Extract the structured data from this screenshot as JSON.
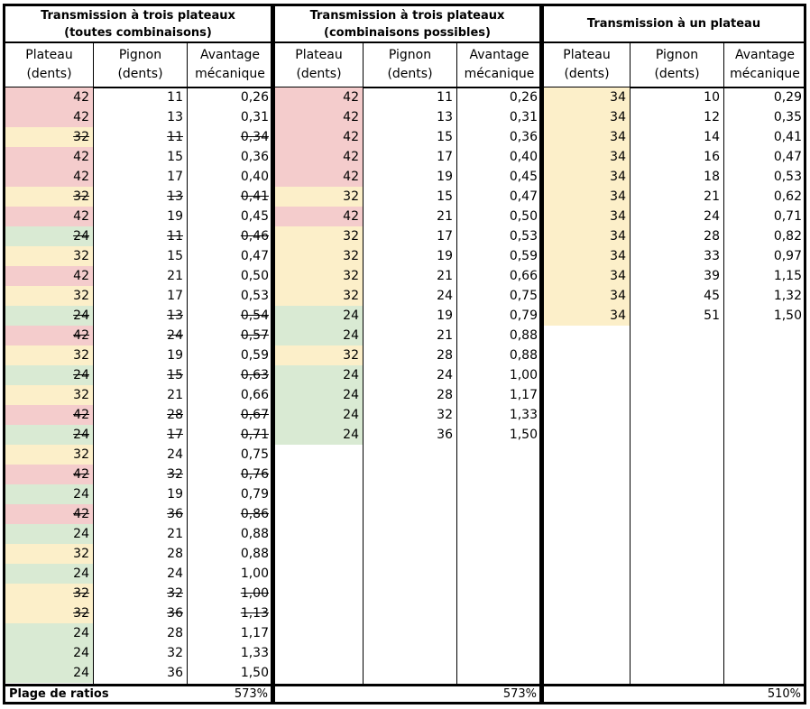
{
  "sections": [
    {
      "title_line1": "Transmission à trois plateaux",
      "title_line2": "(toutes combinaisons)",
      "headers": [
        {
          "line1": "Plateau",
          "line2": "(dents)"
        },
        {
          "line1": "Pignon",
          "line2": "(dents)"
        },
        {
          "line1": "Avantage",
          "line2": "mécanique"
        }
      ],
      "rows": [
        {
          "plateau": "42",
          "pignon": "11",
          "avantage": "0,26",
          "color": "red",
          "struck": false
        },
        {
          "plateau": "42",
          "pignon": "13",
          "avantage": "0,31",
          "color": "red",
          "struck": false
        },
        {
          "plateau": "32",
          "pignon": "11",
          "avantage": "0,34",
          "color": "yellow",
          "struck": true
        },
        {
          "plateau": "42",
          "pignon": "15",
          "avantage": "0,36",
          "color": "red",
          "struck": false
        },
        {
          "plateau": "42",
          "pignon": "17",
          "avantage": "0,40",
          "color": "red",
          "struck": false
        },
        {
          "plateau": "32",
          "pignon": "13",
          "avantage": "0,41",
          "color": "yellow",
          "struck": true
        },
        {
          "plateau": "42",
          "pignon": "19",
          "avantage": "0,45",
          "color": "red",
          "struck": false
        },
        {
          "plateau": "24",
          "pignon": "11",
          "avantage": "0,46",
          "color": "green",
          "struck": true
        },
        {
          "plateau": "32",
          "pignon": "15",
          "avantage": "0,47",
          "color": "yellow",
          "struck": false
        },
        {
          "plateau": "42",
          "pignon": "21",
          "avantage": "0,50",
          "color": "red",
          "struck": false
        },
        {
          "plateau": "32",
          "pignon": "17",
          "avantage": "0,53",
          "color": "yellow",
          "struck": false
        },
        {
          "plateau": "24",
          "pignon": "13",
          "avantage": "0,54",
          "color": "green",
          "struck": true
        },
        {
          "plateau": "42",
          "pignon": "24",
          "avantage": "0,57",
          "color": "red",
          "struck": true
        },
        {
          "plateau": "32",
          "pignon": "19",
          "avantage": "0,59",
          "color": "yellow",
          "struck": false
        },
        {
          "plateau": "24",
          "pignon": "15",
          "avantage": "0,63",
          "color": "green",
          "struck": true
        },
        {
          "plateau": "32",
          "pignon": "21",
          "avantage": "0,66",
          "color": "yellow",
          "struck": false
        },
        {
          "plateau": "42",
          "pignon": "28",
          "avantage": "0,67",
          "color": "red",
          "struck": true
        },
        {
          "plateau": "24",
          "pignon": "17",
          "avantage": "0,71",
          "color": "green",
          "struck": true
        },
        {
          "plateau": "32",
          "pignon": "24",
          "avantage": "0,75",
          "color": "yellow",
          "struck": false
        },
        {
          "plateau": "42",
          "pignon": "32",
          "avantage": "0,76",
          "color": "red",
          "struck": true
        },
        {
          "plateau": "24",
          "pignon": "19",
          "avantage": "0,79",
          "color": "green",
          "struck": false
        },
        {
          "plateau": "42",
          "pignon": "36",
          "avantage": "0,86",
          "color": "red",
          "struck": true
        },
        {
          "plateau": "24",
          "pignon": "21",
          "avantage": "0,88",
          "color": "green",
          "struck": false
        },
        {
          "plateau": "32",
          "pignon": "28",
          "avantage": "0,88",
          "color": "yellow",
          "struck": false
        },
        {
          "plateau": "24",
          "pignon": "24",
          "avantage": "1,00",
          "color": "green",
          "struck": false
        },
        {
          "plateau": "32",
          "pignon": "32",
          "avantage": "1,00",
          "color": "yellow",
          "struck": true
        },
        {
          "plateau": "32",
          "pignon": "36",
          "avantage": "1,13",
          "color": "yellow",
          "struck": true
        },
        {
          "plateau": "24",
          "pignon": "28",
          "avantage": "1,17",
          "color": "green",
          "struck": false
        },
        {
          "plateau": "24",
          "pignon": "32",
          "avantage": "1,33",
          "color": "green",
          "struck": false
        },
        {
          "plateau": "24",
          "pignon": "36",
          "avantage": "1,50",
          "color": "green",
          "struck": false
        }
      ],
      "footer_label": "Plage de ratios",
      "footer_value": "573%"
    },
    {
      "title_line1": "Transmission à trois plateaux",
      "title_line2": "(combinaisons possibles)",
      "headers": [
        {
          "line1": "Plateau",
          "line2": "(dents)"
        },
        {
          "line1": "Pignon",
          "line2": "(dents)"
        },
        {
          "line1": "Avantage",
          "line2": "mécanique"
        }
      ],
      "rows": [
        {
          "plateau": "42",
          "pignon": "11",
          "avantage": "0,26",
          "color": "red",
          "struck": false
        },
        {
          "plateau": "42",
          "pignon": "13",
          "avantage": "0,31",
          "color": "red",
          "struck": false
        },
        {
          "plateau": "42",
          "pignon": "15",
          "avantage": "0,36",
          "color": "red",
          "struck": false
        },
        {
          "plateau": "42",
          "pignon": "17",
          "avantage": "0,40",
          "color": "red",
          "struck": false
        },
        {
          "plateau": "42",
          "pignon": "19",
          "avantage": "0,45",
          "color": "red",
          "struck": false
        },
        {
          "plateau": "32",
          "pignon": "15",
          "avantage": "0,47",
          "color": "yellow",
          "struck": false
        },
        {
          "plateau": "42",
          "pignon": "21",
          "avantage": "0,50",
          "color": "red",
          "struck": false
        },
        {
          "plateau": "32",
          "pignon": "17",
          "avantage": "0,53",
          "color": "yellow",
          "struck": false
        },
        {
          "plateau": "32",
          "pignon": "19",
          "avantage": "0,59",
          "color": "yellow",
          "struck": false
        },
        {
          "plateau": "32",
          "pignon": "21",
          "avantage": "0,66",
          "color": "yellow",
          "struck": false
        },
        {
          "plateau": "32",
          "pignon": "24",
          "avantage": "0,75",
          "color": "yellow",
          "struck": false
        },
        {
          "plateau": "24",
          "pignon": "19",
          "avantage": "0,79",
          "color": "green",
          "struck": false
        },
        {
          "plateau": "24",
          "pignon": "21",
          "avantage": "0,88",
          "color": "green",
          "struck": false
        },
        {
          "plateau": "32",
          "pignon": "28",
          "avantage": "0,88",
          "color": "yellow",
          "struck": false
        },
        {
          "plateau": "24",
          "pignon": "24",
          "avantage": "1,00",
          "color": "green",
          "struck": false
        },
        {
          "plateau": "24",
          "pignon": "28",
          "avantage": "1,17",
          "color": "green",
          "struck": false
        },
        {
          "plateau": "24",
          "pignon": "32",
          "avantage": "1,33",
          "color": "green",
          "struck": false
        },
        {
          "plateau": "24",
          "pignon": "36",
          "avantage": "1,50",
          "color": "green",
          "struck": false
        }
      ],
      "footer_label": "",
      "footer_value": "573%"
    },
    {
      "title_line1": "Transmission à un plateau",
      "title_line2": "",
      "headers": [
        {
          "line1": "Plateau",
          "line2": "(dents)"
        },
        {
          "line1": "Pignon",
          "line2": "(dents)"
        },
        {
          "line1": "Avantage",
          "line2": "mécanique"
        }
      ],
      "rows": [
        {
          "plateau": "34",
          "pignon": "10",
          "avantage": "0,29",
          "color": "yellow",
          "struck": false
        },
        {
          "plateau": "34",
          "pignon": "12",
          "avantage": "0,35",
          "color": "yellow",
          "struck": false
        },
        {
          "plateau": "34",
          "pignon": "14",
          "avantage": "0,41",
          "color": "yellow",
          "struck": false
        },
        {
          "plateau": "34",
          "pignon": "16",
          "avantage": "0,47",
          "color": "yellow",
          "struck": false
        },
        {
          "plateau": "34",
          "pignon": "18",
          "avantage": "0,53",
          "color": "yellow",
          "struck": false
        },
        {
          "plateau": "34",
          "pignon": "21",
          "avantage": "0,62",
          "color": "yellow",
          "struck": false
        },
        {
          "plateau": "34",
          "pignon": "24",
          "avantage": "0,71",
          "color": "yellow",
          "struck": false
        },
        {
          "plateau": "34",
          "pignon": "28",
          "avantage": "0,82",
          "color": "yellow",
          "struck": false
        },
        {
          "plateau": "34",
          "pignon": "33",
          "avantage": "0,97",
          "color": "yellow",
          "struck": false
        },
        {
          "plateau": "34",
          "pignon": "39",
          "avantage": "1,15",
          "color": "yellow",
          "struck": false
        },
        {
          "plateau": "34",
          "pignon": "45",
          "avantage": "1,32",
          "color": "yellow",
          "struck": false
        },
        {
          "plateau": "34",
          "pignon": "51",
          "avantage": "1,50",
          "color": "yellow",
          "struck": false
        }
      ],
      "footer_label": "",
      "footer_value": "510%"
    }
  ],
  "colors": {
    "red": "#f4cccc",
    "yellow": "#fcefc9",
    "green": "#d9ead3"
  }
}
